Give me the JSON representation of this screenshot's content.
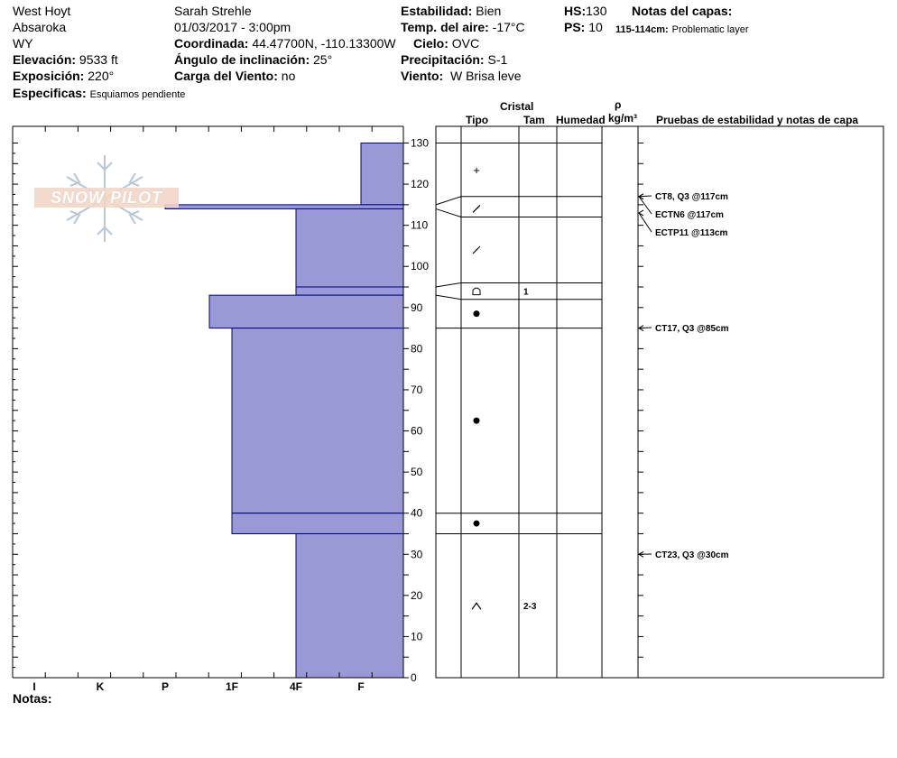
{
  "header": {
    "location": "West Hoyt",
    "range": "Absaroka",
    "state": "WY",
    "observer": "Sarah Strehle",
    "datetime": "01/03/2017 - 3:00pm",
    "elevation_label": "Elevación:",
    "elevation_value": "9533 ft",
    "aspect_label": "Exposición:",
    "aspect_value": "220°",
    "specifics_label": "Especificas:",
    "specifics_value": "Esquiamos pendiente",
    "coord_label": "Coordinada:",
    "coord_value": "44.47700N, -110.13300W",
    "slope_label": "Ángulo de inclinación:",
    "slope_value": "25°",
    "wind_load_label": "Carga del Viento:",
    "wind_load_value": "no",
    "stability_label": "Estabilidad:",
    "stability_value": "Bien",
    "air_temp_label": "Temp. del aire:",
    "air_temp_value": "-17°C",
    "sky_label": "Cielo:",
    "sky_value": "OVC",
    "precip_label": "Precipitación:",
    "precip_value": "S-1",
    "wind_label": "Viento:",
    "wind_value": "W Brisa leve",
    "hs_label": "HS:",
    "hs_value": "130",
    "ps_label": "PS:",
    "ps_value": "10",
    "layer_notes_label": "Notas del capas:",
    "layer_note_range": "115-114cm:",
    "layer_note_text": "Problematic layer"
  },
  "logo_text": "SNOW PILOT",
  "notes_label": "Notas:",
  "columns": {
    "cristal": "Cristal",
    "tipo": "Tipo",
    "tam": "Tam",
    "humedad": "Humedad",
    "rho": "ρ",
    "density_unit": "kg/m³",
    "tests": "Pruebas de estabilidad y notas de capa"
  },
  "colors": {
    "layer_fill": "#9999d6",
    "layer_stroke": "#000080"
  },
  "chart_data": {
    "type": "bar",
    "title": "",
    "ylabel": "",
    "ylim": [
      0,
      130
    ],
    "yticks": [
      "0",
      "10",
      "20",
      "30",
      "40",
      "50",
      "60",
      "70",
      "80",
      "90",
      "100",
      "110",
      "120",
      "130"
    ],
    "hardness_scale": [
      "I",
      "K",
      "P",
      "1F",
      "4F",
      "F"
    ],
    "hardness_profile": [
      {
        "top": 130,
        "bottom": 115,
        "hardness": "F"
      },
      {
        "top": 115,
        "bottom": 114,
        "hardness": "P"
      },
      {
        "top": 114,
        "bottom": 95,
        "hardness": "4F"
      },
      {
        "top": 95,
        "bottom": 93,
        "hardness": "4F"
      },
      {
        "top": 93,
        "bottom": 85,
        "hardness": "K+"
      },
      {
        "top": 85,
        "bottom": 40,
        "hardness": "1F"
      },
      {
        "top": 40,
        "bottom": 35,
        "hardness": "1F"
      },
      {
        "top": 35,
        "bottom": 0,
        "hardness": "4F"
      }
    ],
    "layer_boundaries_cm": [
      130,
      117,
      112,
      96,
      92,
      85,
      40,
      35
    ],
    "crystals": [
      {
        "height": 123.5,
        "type": "+",
        "size": ""
      },
      {
        "height": 114,
        "type": "/",
        "size": ""
      },
      {
        "height": 104,
        "type": "/",
        "size": ""
      },
      {
        "height": 94,
        "type": "faceted",
        "size": "1"
      },
      {
        "height": 88.5,
        "type": "•",
        "size": ""
      },
      {
        "height": 62.5,
        "type": "•",
        "size": ""
      },
      {
        "height": 37.5,
        "type": "•",
        "size": ""
      },
      {
        "height": 17.5,
        "type": "^",
        "size": "2-3"
      }
    ],
    "tests": [
      {
        "height": 117,
        "label": "CT8, Q3 @117cm"
      },
      {
        "height": 117,
        "label": "ECTN6 @117cm"
      },
      {
        "height": 113,
        "label": "ECTP11 @113cm"
      },
      {
        "height": 85,
        "label": "CT17, Q3 @85cm"
      },
      {
        "height": 30,
        "label": "CT23, Q3 @30cm"
      }
    ]
  }
}
